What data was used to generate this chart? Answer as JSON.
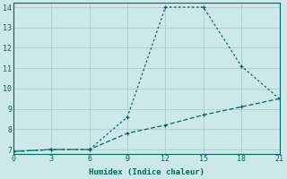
{
  "xlabel": "Humidex (Indice chaleur)",
  "ylabel": "",
  "background_color": "#cce8e8",
  "grid_color": "#aacccc",
  "line_color": "#006666",
  "xlim": [
    0,
    21
  ],
  "ylim": [
    6.8,
    14.2
  ],
  "xticks": [
    0,
    3,
    6,
    9,
    12,
    15,
    18,
    21
  ],
  "yticks": [
    7,
    8,
    9,
    10,
    11,
    12,
    13,
    14
  ],
  "series1_x": [
    0,
    3,
    6,
    9,
    12,
    15,
    18,
    21
  ],
  "series1_y": [
    6.9,
    7.0,
    7.0,
    8.6,
    14.0,
    14.0,
    11.1,
    9.5
  ],
  "series2_x": [
    0,
    3,
    6,
    9,
    12,
    15,
    18,
    21
  ],
  "series2_y": [
    6.9,
    7.0,
    7.0,
    7.8,
    8.2,
    8.7,
    9.1,
    9.5
  ]
}
